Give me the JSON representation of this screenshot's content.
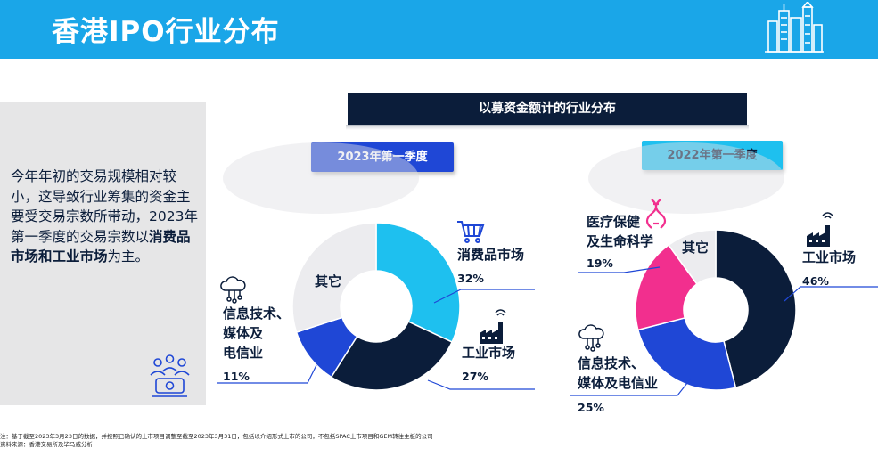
{
  "header": {
    "title": "香港IPO行业分布"
  },
  "side": {
    "text_pre": "今年年初的交易规模相对较小，这导致行业筹集的资金主要受交易宗数所带动，2023年第一季度的交易宗数以",
    "text_bold": "消费品市场和工业市场",
    "text_post": "为主。"
  },
  "banner": {
    "title": "以募资金额计的行业分布"
  },
  "colors": {
    "header": "#1aa6e8",
    "navy": "#0b1d3a",
    "blue": "#1f47d6",
    "cyan": "#1ec0ef",
    "pink": "#f22f8e",
    "light": "#ececef"
  },
  "chart_data": [
    {
      "type": "pie",
      "title": "2023年第一季度",
      "slices": [
        {
          "label": "消费品市场",
          "value": 32,
          "value_label": "32%",
          "color": "#1ec0ef",
          "icon": "cart-icon"
        },
        {
          "label": "工业市场",
          "value": 27,
          "value_label": "27%",
          "color": "#0b1d3a",
          "icon": "factory-icon"
        },
        {
          "label_lines": [
            "信息技术、",
            "媒体及",
            "电信业"
          ],
          "value": 11,
          "value_label": "11%",
          "color": "#1f47d6",
          "icon": "cloud-icon"
        },
        {
          "label": "其它",
          "value": 30,
          "color": "#ececef"
        }
      ]
    },
    {
      "type": "pie",
      "title": "2022年第一季度",
      "slices": [
        {
          "label": "工业市场",
          "value": 46,
          "value_label": "46%",
          "color": "#0b1d3a",
          "icon": "factory-icon"
        },
        {
          "label_lines": [
            "信息技术、",
            "媒体及电信业"
          ],
          "value": 25,
          "value_label": "25%",
          "color": "#1f47d6",
          "icon": "cloud-icon"
        },
        {
          "label_lines": [
            "医疗保健",
            "及生命科学"
          ],
          "value": 19,
          "value_label": "19%",
          "color": "#f22f8e",
          "icon": "dna-icon"
        },
        {
          "label": "其它",
          "value": 10,
          "color": "#ececef"
        }
      ]
    }
  ],
  "notes": {
    "line1": "注：基于截至2023年3月23日的数据，并按照已确认的上市项目调整至截至2023年3月31日，包括以介绍形式上市的公司，不包括SPAC上市项目和GEM转往主板的公司",
    "line2": "资料来源：香港交易所及毕马威分析"
  }
}
